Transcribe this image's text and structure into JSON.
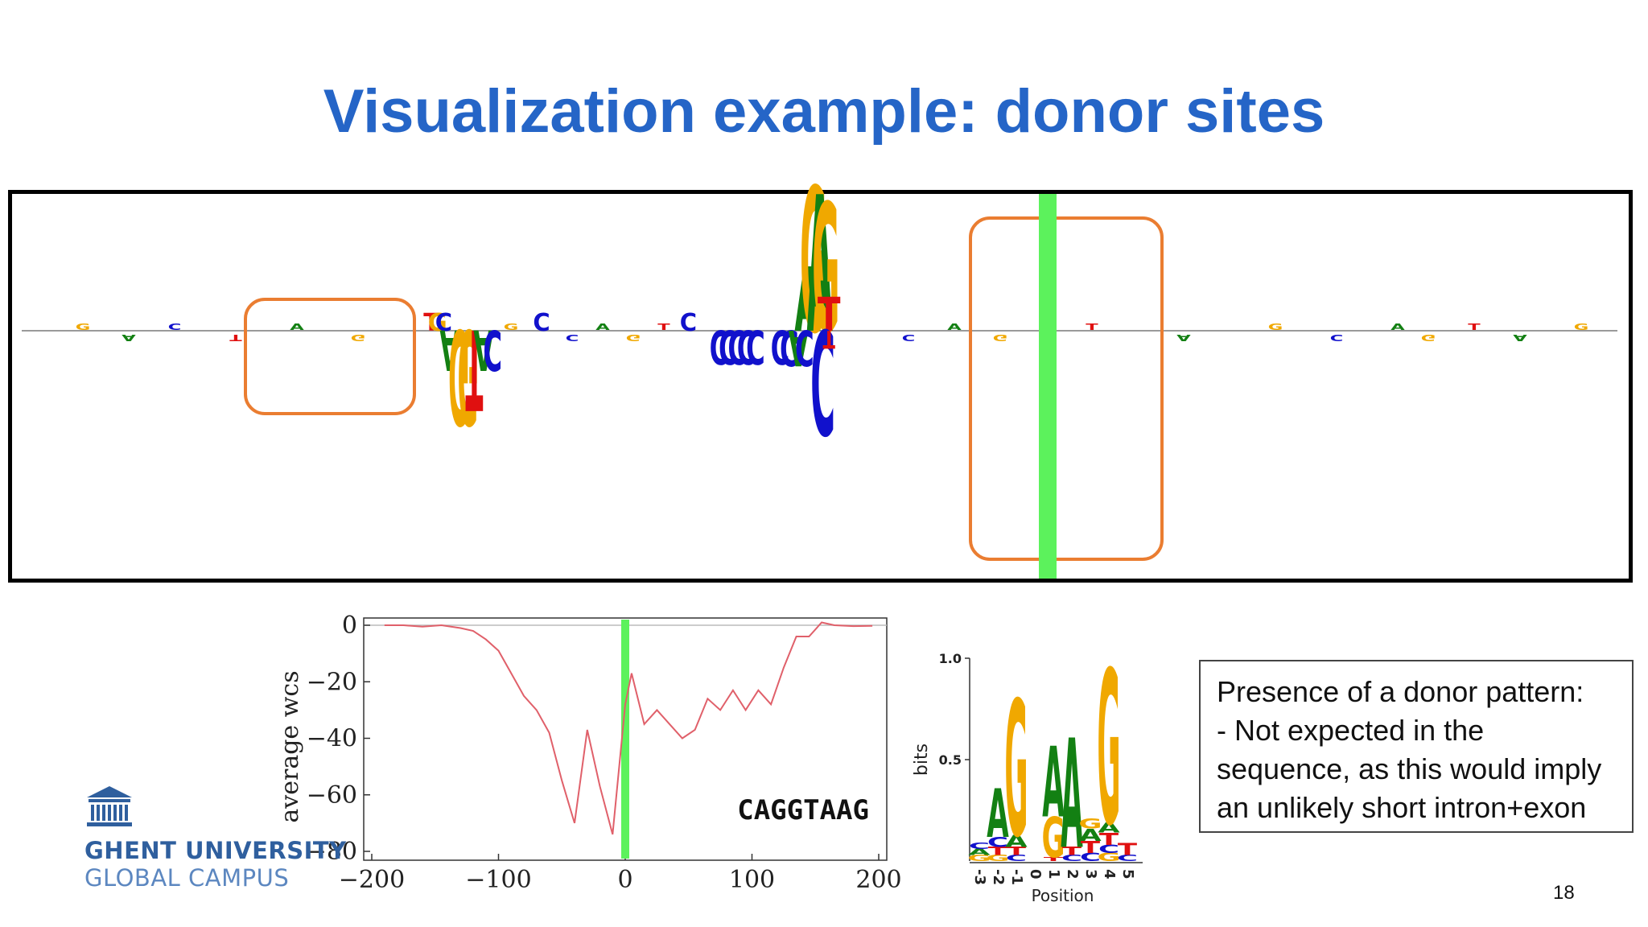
{
  "slide": {
    "title": "Visualization example: donor sites",
    "number": "18"
  },
  "logo": {
    "line1": "GHENT UNIVERSITY",
    "line2": "GLOBAL CAMPUS",
    "icon": "university-building-icon"
  },
  "note": {
    "lines": [
      "Presence of a donor pattern:",
      "- Not expected in the",
      "sequence, as this would imply",
      "an unlikely short intron+exon"
    ]
  },
  "colors": {
    "title": "#2565c7",
    "highlight_box": "#ea7d31",
    "marker_line": "#5cf25c",
    "A": "#138013",
    "C": "#1111cc",
    "G": "#f0a800",
    "T": "#e01010",
    "wcs_line": "#e0606a"
  },
  "chart_data": [
    {
      "type": "sequence-logo",
      "description_label": "",
      "letters_above_axis": [
        {
          "letter": "T",
          "approx_pos": -126
        },
        {
          "letter": "G",
          "approx_pos": -124
        },
        {
          "letter": "C",
          "approx_pos": -122
        },
        {
          "letter": "C",
          "approx_pos": -90
        },
        {
          "letter": "C",
          "approx_pos": -42
        },
        {
          "letter": "A",
          "approx_pos": -3
        },
        {
          "letter": "G",
          "approx_pos": -1
        },
        {
          "letter": "A",
          "approx_pos": 1
        },
        {
          "letter": "G",
          "approx_pos": 3
        },
        {
          "letter": "T",
          "approx_pos": 4
        }
      ],
      "letters_below_axis": [
        {
          "letter": "A",
          "approx_pos": -120
        },
        {
          "letter": "G",
          "approx_pos": -117
        },
        {
          "letter": "G",
          "approx_pos": -114
        },
        {
          "letter": "T",
          "approx_pos": -112
        },
        {
          "letter": "A",
          "approx_pos": -109
        },
        {
          "letter": "C",
          "approx_pos": -106
        },
        {
          "letter": "C",
          "approx_pos": -32
        },
        {
          "letter": "C",
          "approx_pos": -29
        },
        {
          "letter": "C",
          "approx_pos": -26
        },
        {
          "letter": "C",
          "approx_pos": -23
        },
        {
          "letter": "C",
          "approx_pos": -20
        },
        {
          "letter": "C",
          "approx_pos": -12
        },
        {
          "letter": "C",
          "approx_pos": -9
        },
        {
          "letter": "A",
          "approx_pos": -6
        },
        {
          "letter": "C",
          "approx_pos": -4
        },
        {
          "letter": "C",
          "approx_pos": 2
        },
        {
          "letter": "T",
          "approx_pos": 4
        }
      ]
    },
    {
      "type": "line",
      "title": "",
      "xlabel": "",
      "ylabel": "average wcs",
      "xlim": [
        -200,
        200
      ],
      "ylim": [
        -80,
        0
      ],
      "xticks": [
        -200,
        -100,
        0,
        100,
        200
      ],
      "yticks": [
        0,
        -20,
        -40,
        -60,
        -80
      ],
      "grid": false,
      "annotation": "CAGGTAAG",
      "marker_x": 0,
      "series": [
        {
          "x": [
            -190,
            -175,
            -160,
            -145,
            -130,
            -120,
            -110,
            -100,
            -90,
            -80,
            -70,
            -60,
            -50,
            -40,
            -30,
            -20,
            -10,
            0,
            5,
            15,
            25,
            35,
            45,
            55,
            65,
            75,
            85,
            95,
            105,
            115,
            125,
            135,
            145,
            155,
            165,
            180,
            195
          ],
          "y": [
            0,
            0,
            -0.5,
            0,
            -1,
            -2,
            -5,
            -9,
            -17,
            -25,
            -30,
            -38,
            -55,
            -70,
            -37,
            -57,
            -74,
            -28,
            -17,
            -35,
            -30,
            -35,
            -40,
            -37,
            -26,
            -30,
            -23,
            -30,
            -23,
            -28,
            -15,
            -4,
            -4,
            1,
            0,
            -0.3,
            -0.2
          ]
        }
      ]
    },
    {
      "type": "sequence-logo",
      "ylabel": "bits",
      "xlabel": "Position",
      "ylim": [
        0,
        1.0
      ],
      "yticks": [
        "0.5",
        "1.0"
      ],
      "positions": [
        "-3",
        "-2",
        "-1",
        "0",
        "1",
        "2",
        "3",
        "4",
        "5"
      ],
      "stacks": [
        {
          "position": "-3",
          "letters": [
            {
              "letter": "G",
              "bits": 0.03
            },
            {
              "letter": "A",
              "bits": 0.03
            },
            {
              "letter": "C",
              "bits": 0.03
            }
          ]
        },
        {
          "position": "-2",
          "letters": [
            {
              "letter": "G",
              "bits": 0.03
            },
            {
              "letter": "T",
              "bits": 0.04
            },
            {
              "letter": "C",
              "bits": 0.05
            },
            {
              "letter": "A",
              "bits": 0.24
            }
          ]
        },
        {
          "position": "-1",
          "letters": [
            {
              "letter": "C",
              "bits": 0.03
            },
            {
              "letter": "T",
              "bits": 0.04
            },
            {
              "letter": "A",
              "bits": 0.06
            },
            {
              "letter": "G",
              "bits": 0.67
            }
          ]
        },
        {
          "position": "0",
          "letters": []
        },
        {
          "position": "1",
          "letters": [
            {
              "letter": "T",
              "bits": 0.02
            },
            {
              "letter": "G",
              "bits": 0.2
            },
            {
              "letter": "A",
              "bits": 0.35
            }
          ]
        },
        {
          "position": "2",
          "letters": [
            {
              "letter": "C",
              "bits": 0.03
            },
            {
              "letter": "T",
              "bits": 0.04
            },
            {
              "letter": "A",
              "bits": 0.54
            }
          ]
        },
        {
          "position": "3",
          "letters": [
            {
              "letter": "C",
              "bits": 0.04
            },
            {
              "letter": "T",
              "bits": 0.06
            },
            {
              "letter": "A",
              "bits": 0.06
            },
            {
              "letter": "G",
              "bits": 0.05
            }
          ]
        },
        {
          "position": "4",
          "letters": [
            {
              "letter": "G",
              "bits": 0.04
            },
            {
              "letter": "C",
              "bits": 0.04
            },
            {
              "letter": "T",
              "bits": 0.06
            },
            {
              "letter": "A",
              "bits": 0.05
            },
            {
              "letter": "G",
              "bits": 0.76
            }
          ]
        },
        {
          "position": "5",
          "letters": [
            {
              "letter": "C",
              "bits": 0.03
            },
            {
              "letter": "T",
              "bits": 0.06
            }
          ]
        }
      ]
    }
  ]
}
